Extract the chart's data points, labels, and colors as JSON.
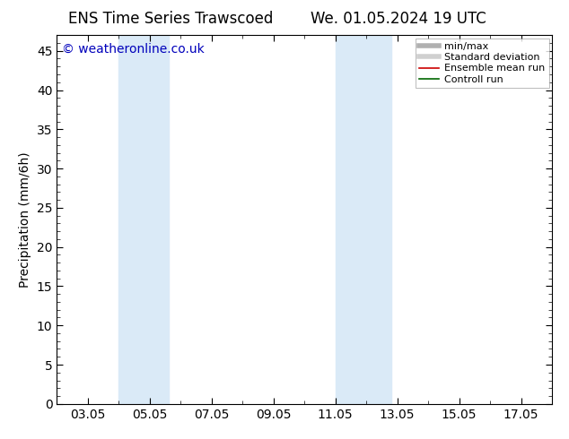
{
  "title_left": "ENS Time Series Trawscoed",
  "title_right": "We. 01.05.2024 19 UTC",
  "ylabel": "Precipitation (mm/6h)",
  "ylim": [
    0,
    47
  ],
  "yticks": [
    0,
    5,
    10,
    15,
    20,
    25,
    30,
    35,
    40,
    45
  ],
  "xlim": [
    2.0,
    18.0
  ],
  "xtick_labels": [
    "03.05",
    "05.05",
    "07.05",
    "09.05",
    "11.05",
    "13.05",
    "15.05",
    "17.05"
  ],
  "xtick_positions": [
    3,
    5,
    7,
    9,
    11,
    13,
    15,
    17
  ],
  "shaded_regions": [
    {
      "xmin": 4.0,
      "xmax": 5.6,
      "color": "#daeaf7"
    },
    {
      "xmin": 11.0,
      "xmax": 12.8,
      "color": "#daeaf7"
    }
  ],
  "watermark": "© weatheronline.co.uk",
  "watermark_color": "#0000bb",
  "legend_items": [
    {
      "label": "min/max",
      "color": "#b0b0b0",
      "lw": 4
    },
    {
      "label": "Standard deviation",
      "color": "#d0d0d0",
      "lw": 4
    },
    {
      "label": "Ensemble mean run",
      "color": "#cc0000",
      "lw": 1.2
    },
    {
      "label": "Controll run",
      "color": "#006600",
      "lw": 1.2
    }
  ],
  "bg_color": "#ffffff",
  "plot_bg_color": "#ffffff",
  "border_color": "#000000",
  "title_fontsize": 12,
  "ylabel_fontsize": 10,
  "tick_fontsize": 10,
  "legend_fontsize": 8,
  "watermark_fontsize": 10
}
